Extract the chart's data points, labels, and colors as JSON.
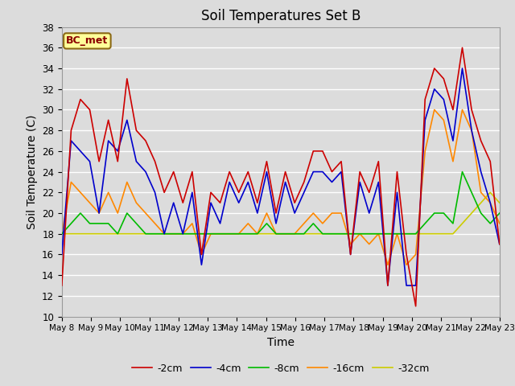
{
  "title": "Soil Temperatures Set B",
  "xlabel": "Time",
  "ylabel": "Soil Temperature (C)",
  "ylim": [
    10,
    38
  ],
  "yticks": [
    10,
    12,
    14,
    16,
    18,
    20,
    22,
    24,
    26,
    28,
    30,
    32,
    34,
    36,
    38
  ],
  "annotation": "BC_met",
  "annotation_color": "#8B0000",
  "annotation_bg": "#FFFF99",
  "annotation_border": "#8B6914",
  "colors": {
    "-2cm": "#CC0000",
    "-4cm": "#0000CC",
    "-8cm": "#00BB00",
    "-16cm": "#FF8800",
    "-32cm": "#CCCC00"
  },
  "linewidth": 1.2,
  "fig_bg": "#DCDCDC",
  "plot_bg": "#DCDCDC",
  "grid_color": "#FFFFFF",
  "xtick_labels": [
    "May 8",
    "May 9",
    "May 10",
    "May 11",
    "May 12",
    "May 13",
    "May 14",
    "May 15",
    "May 16",
    "May 17",
    "May 18",
    "May 19",
    "May 20",
    "May 21",
    "May 22",
    "May 23"
  ],
  "data_2cm": [
    13,
    28,
    31,
    30,
    25,
    29,
    25,
    33,
    28,
    27,
    25,
    22,
    24,
    21,
    24,
    16,
    22,
    21,
    24,
    22,
    24,
    21,
    25,
    20,
    24,
    21,
    23,
    26,
    26,
    24,
    25,
    16,
    24,
    22,
    25,
    13,
    24,
    16,
    11,
    31,
    34,
    33,
    30,
    36,
    30,
    27,
    25,
    17
  ],
  "data_4cm": [
    16,
    27,
    26,
    25,
    20,
    27,
    26,
    29,
    25,
    24,
    22,
    18,
    21,
    18,
    22,
    15,
    21,
    19,
    23,
    21,
    23,
    20,
    24,
    19,
    23,
    20,
    22,
    24,
    24,
    23,
    24,
    16,
    23,
    20,
    23,
    13,
    22,
    13,
    13,
    29,
    32,
    31,
    27,
    34,
    28,
    24,
    21,
    17
  ],
  "data_8cm": [
    18,
    19,
    20,
    19,
    19,
    19,
    18,
    20,
    19,
    18,
    18,
    18,
    18,
    18,
    18,
    18,
    18,
    18,
    18,
    18,
    18,
    18,
    19,
    18,
    18,
    18,
    18,
    19,
    18,
    18,
    18,
    18,
    18,
    18,
    18,
    18,
    18,
    18,
    18,
    19,
    20,
    20,
    19,
    24,
    22,
    20,
    19,
    20
  ],
  "data_16cm": [
    18,
    23,
    22,
    21,
    20,
    22,
    20,
    23,
    21,
    20,
    19,
    18,
    18,
    18,
    19,
    16,
    18,
    18,
    18,
    18,
    19,
    18,
    20,
    18,
    18,
    18,
    19,
    20,
    19,
    20,
    20,
    17,
    18,
    17,
    18,
    15,
    18,
    15,
    16,
    26,
    30,
    29,
    25,
    30,
    28,
    22,
    21,
    19
  ],
  "data_32cm": [
    18,
    18,
    18,
    18,
    18,
    18,
    18,
    18,
    18,
    18,
    18,
    18,
    18,
    18,
    18,
    18,
    18,
    18,
    18,
    18,
    18,
    18,
    18,
    18,
    18,
    18,
    18,
    18,
    18,
    18,
    18,
    18,
    18,
    18,
    18,
    18,
    18,
    18,
    18,
    18,
    18,
    18,
    18,
    19,
    20,
    21,
    22,
    21
  ]
}
